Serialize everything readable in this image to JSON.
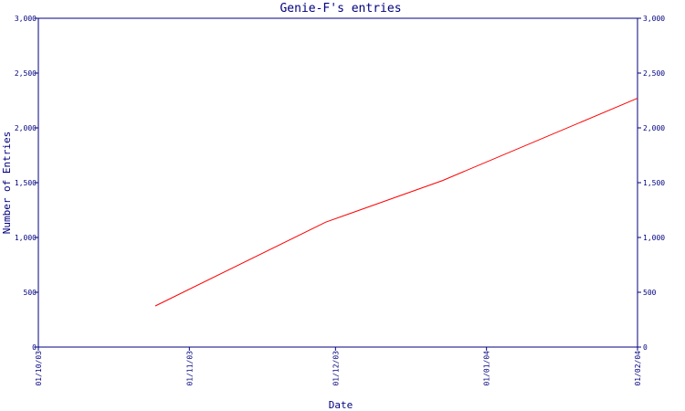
{
  "chart_data": {
    "type": "line",
    "title": "Genie-F's entries",
    "xlabel": "Date",
    "ylabel": "Number of Entries",
    "x_ticks": [
      "01/10/03",
      "01/11/03",
      "01/12/03",
      "01/01/04",
      "01/02/04"
    ],
    "y_ticks": [
      "0",
      "500",
      "1,000",
      "1,500",
      "2,000",
      "2,500",
      "3,000"
    ],
    "ylim": [
      0,
      3000
    ],
    "xlim": [
      "01/10/03",
      "01/02/04"
    ],
    "secondary_y_axis": true,
    "grid": false,
    "series": [
      {
        "color": "#ff0000",
        "points": [
          {
            "x": "2003-10-25",
            "y": 375
          },
          {
            "x": "2003-11-29",
            "y": 1140
          },
          {
            "x": "2003-12-23",
            "y": 1520
          },
          {
            "x": "2004-02-01",
            "y": 2270
          }
        ]
      }
    ]
  },
  "colors": {
    "axis": "#00007f",
    "text": "#00007f",
    "line": "#ff0000",
    "background": "#ffffff"
  }
}
